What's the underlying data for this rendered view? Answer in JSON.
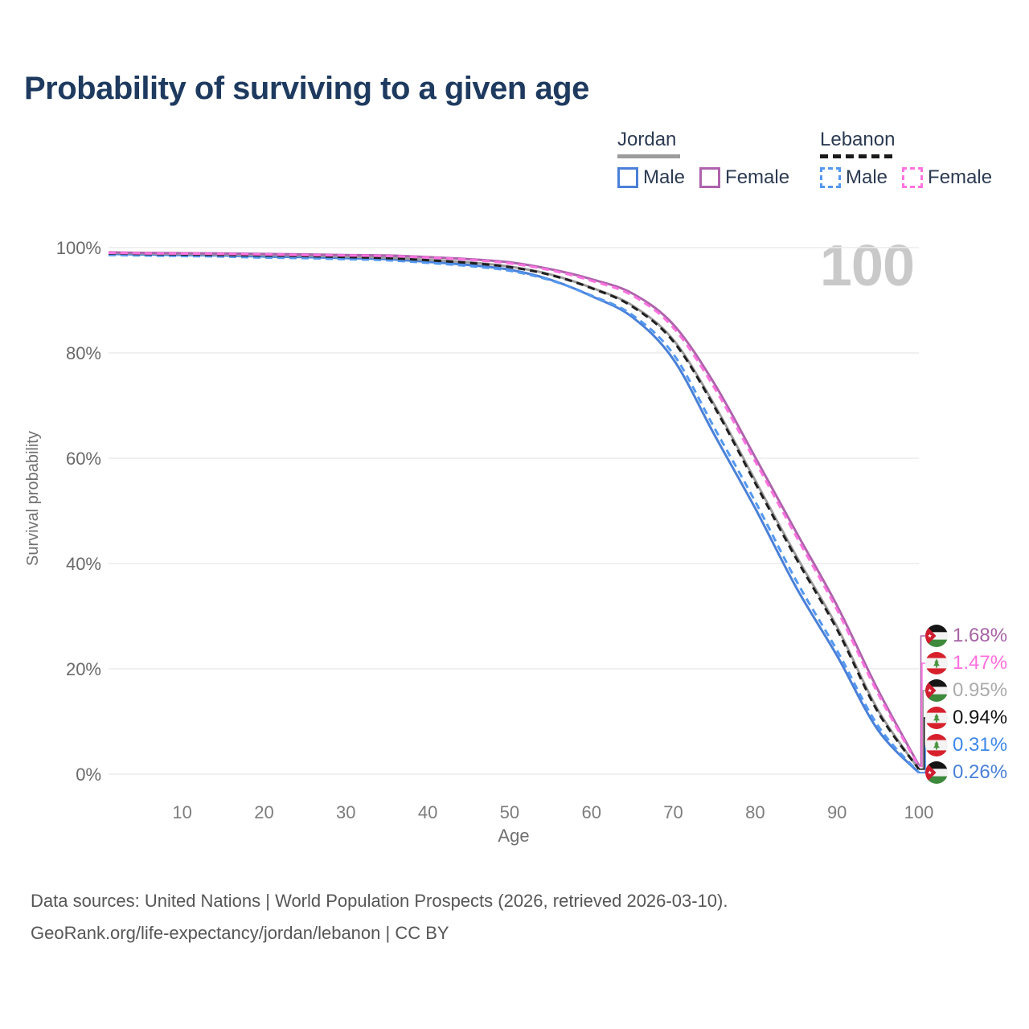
{
  "title": "Probability of surviving to a given age",
  "watermark": "100",
  "legend": {
    "groups": [
      {
        "country": "Jordan",
        "style": "solid",
        "items": [
          {
            "label": "Male"
          },
          {
            "label": "Female"
          }
        ]
      },
      {
        "country": "Lebanon",
        "style": "dashed",
        "items": [
          {
            "label": "Male"
          },
          {
            "label": "Female"
          }
        ]
      }
    ]
  },
  "chart_data": {
    "type": "line",
    "title": "Probability of surviving to a given age",
    "xlabel": "Age",
    "ylabel": "Survival probability",
    "xlim": [
      1,
      100
    ],
    "ylim": [
      0,
      100
    ],
    "grid": "horizontal",
    "legend_position": "top-right",
    "x_ticks": [
      10,
      20,
      30,
      40,
      50,
      60,
      70,
      80,
      90,
      100
    ],
    "y_ticks": [
      {
        "value": 0,
        "label": "0%"
      },
      {
        "value": 20,
        "label": "20%"
      },
      {
        "value": 40,
        "label": "40%"
      },
      {
        "value": 60,
        "label": "60%"
      },
      {
        "value": 80,
        "label": "80%"
      },
      {
        "value": 100,
        "label": "100%"
      }
    ],
    "x": [
      1,
      5,
      10,
      15,
      20,
      25,
      30,
      35,
      40,
      45,
      50,
      55,
      60,
      65,
      70,
      75,
      80,
      85,
      90,
      95,
      100
    ],
    "series": [
      {
        "name": "Jordan Male",
        "id": "jordan-male",
        "country": "Jordan",
        "sex": "Male",
        "style": "solid",
        "color": "#4a80d8",
        "values": [
          98.8,
          98.7,
          98.6,
          98.5,
          98.3,
          98.2,
          98.0,
          97.8,
          97.3,
          96.7,
          95.8,
          93.9,
          90.8,
          86.8,
          78.8,
          64.5,
          50.5,
          35.5,
          22.5,
          8.4,
          0.26
        ]
      },
      {
        "name": "Jordan Both",
        "id": "jordan-both",
        "country": "Jordan",
        "sex": "Both",
        "style": "solid",
        "color": "#9c9c9c",
        "values": [
          99.0,
          98.9,
          98.8,
          98.7,
          98.6,
          98.5,
          98.3,
          98.1,
          97.7,
          97.2,
          96.4,
          94.9,
          92.4,
          89.0,
          82.5,
          70.2,
          55.8,
          41.5,
          28.0,
          12.2,
          0.95
        ]
      },
      {
        "name": "Jordan Female",
        "id": "jordan-female",
        "country": "Jordan",
        "sex": "Female",
        "style": "solid",
        "color": "#ae63ac",
        "values": [
          99.1,
          99.0,
          98.95,
          98.9,
          98.8,
          98.7,
          98.6,
          98.5,
          98.2,
          97.8,
          97.2,
          95.9,
          94.0,
          91.3,
          85.4,
          74.2,
          60.2,
          46.0,
          32.0,
          16.0,
          1.68
        ]
      },
      {
        "name": "Lebanon Male",
        "id": "lebanon-male",
        "country": "Lebanon",
        "sex": "Male",
        "style": "dashed",
        "color": "#5598f0",
        "values": [
          98.6,
          98.5,
          98.4,
          98.3,
          98.1,
          98.0,
          97.8,
          97.6,
          97.1,
          96.5,
          95.6,
          93.8,
          90.9,
          87.2,
          79.8,
          65.8,
          51.8,
          36.8,
          23.5,
          9.2,
          0.31
        ]
      },
      {
        "name": "Lebanon Both",
        "id": "lebanon-both",
        "country": "Lebanon",
        "sex": "Both",
        "style": "dashed",
        "color": "#1f1f1f",
        "values": [
          98.9,
          98.8,
          98.7,
          98.6,
          98.5,
          98.4,
          98.2,
          98.0,
          97.6,
          97.1,
          96.3,
          94.8,
          92.3,
          88.8,
          82.2,
          69.8,
          55.3,
          41.0,
          27.5,
          11.8,
          0.94
        ]
      },
      {
        "name": "Lebanon Female",
        "id": "lebanon-female",
        "country": "Lebanon",
        "sex": "Female",
        "style": "dashed",
        "color": "#ff74e0",
        "values": [
          99.0,
          98.9,
          98.85,
          98.8,
          98.7,
          98.6,
          98.5,
          98.4,
          98.1,
          97.7,
          97.0,
          95.7,
          93.7,
          90.9,
          84.8,
          73.4,
          59.4,
          45.2,
          31.2,
          15.3,
          1.47
        ]
      }
    ],
    "end_labels": [
      {
        "series_index": 2,
        "flag": "jordan",
        "value": "1.68%",
        "color": "#a763a5"
      },
      {
        "series_index": 5,
        "flag": "lebanon",
        "value": "1.47%",
        "color": "#ff6ede"
      },
      {
        "series_index": 1,
        "flag": "jordan",
        "value": "0.95%",
        "color": "#ababab"
      },
      {
        "series_index": 4,
        "flag": "lebanon",
        "value": "0.94%",
        "color": "#141414"
      },
      {
        "series_index": 3,
        "flag": "lebanon",
        "value": "0.31%",
        "color": "#3e88ea"
      },
      {
        "series_index": 0,
        "flag": "jordan",
        "value": "0.26%",
        "color": "#4a80d8"
      }
    ]
  },
  "footer": {
    "line1": "Data sources: United Nations | World Population Prospects (2026, retrieved 2026-03-10).",
    "line2": "GeoRank.org/life-expectancy/jordan/lebanon | CC BY"
  }
}
